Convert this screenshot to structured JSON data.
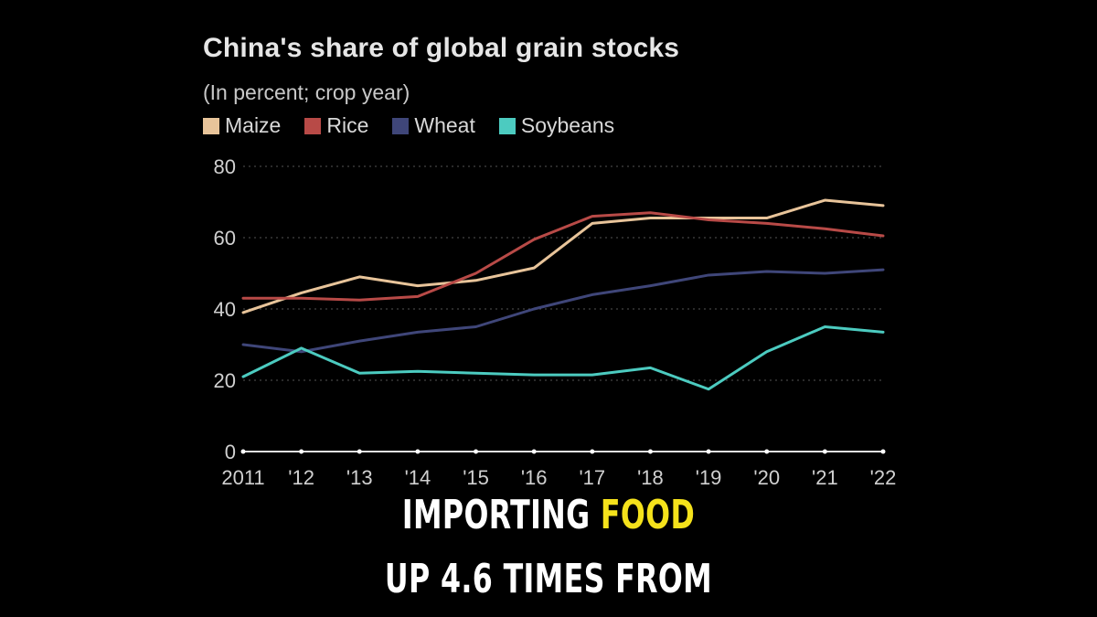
{
  "chart_data": {
    "type": "line",
    "title": "China's share of global grain stocks",
    "subtitle": "(In percent; crop year)",
    "x": [
      "2011",
      "'12",
      "'13",
      "'14",
      "'15",
      "'16",
      "'17",
      "'18",
      "'19",
      "'20",
      "'21",
      "'22"
    ],
    "yticks": [
      "0",
      "20",
      "40",
      "60",
      "80"
    ],
    "ylim": [
      0,
      80
    ],
    "grid": "horizontal dotted",
    "legend_position": "top-left",
    "series": [
      {
        "name": "Maize",
        "color": "#e8c49a",
        "values": [
          39,
          44.5,
          49,
          46.5,
          48,
          51.5,
          64,
          65.5,
          65.5,
          65.5,
          70.5,
          69
        ]
      },
      {
        "name": "Rice",
        "color": "#b84a47",
        "values": [
          43,
          43,
          42.5,
          43.5,
          50,
          59.5,
          66,
          67,
          65,
          64,
          62.5,
          60.5
        ]
      },
      {
        "name": "Wheat",
        "color": "#3f4679",
        "values": [
          30,
          28,
          31,
          33.5,
          35,
          40,
          44,
          46.5,
          49.5,
          50.5,
          50,
          51
        ]
      },
      {
        "name": "Soybeans",
        "color": "#4ccbc0",
        "values": [
          21,
          29,
          22,
          22.5,
          22,
          21.5,
          21.5,
          23.5,
          17.5,
          28,
          35,
          33.5
        ]
      }
    ]
  },
  "caption": {
    "line1_pre": "IMPORTING ",
    "line1_highlight": "FOOD",
    "line2": "UP 4.6 TIMES FROM"
  },
  "colors": {
    "background": "#000000",
    "highlight": "#f5e21b",
    "axis": "#e0e0e0"
  }
}
